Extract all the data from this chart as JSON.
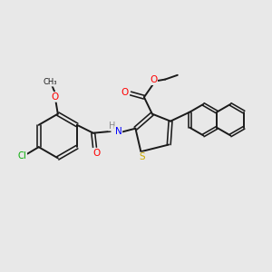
{
  "background_color": "#e8e8e8",
  "bond_color": "#1a1a1a",
  "atom_colors": {
    "O": "#ff0000",
    "N": "#0000ff",
    "S": "#ccaa00",
    "Cl": "#00aa00",
    "H": "#888888",
    "C": "#1a1a1a"
  }
}
